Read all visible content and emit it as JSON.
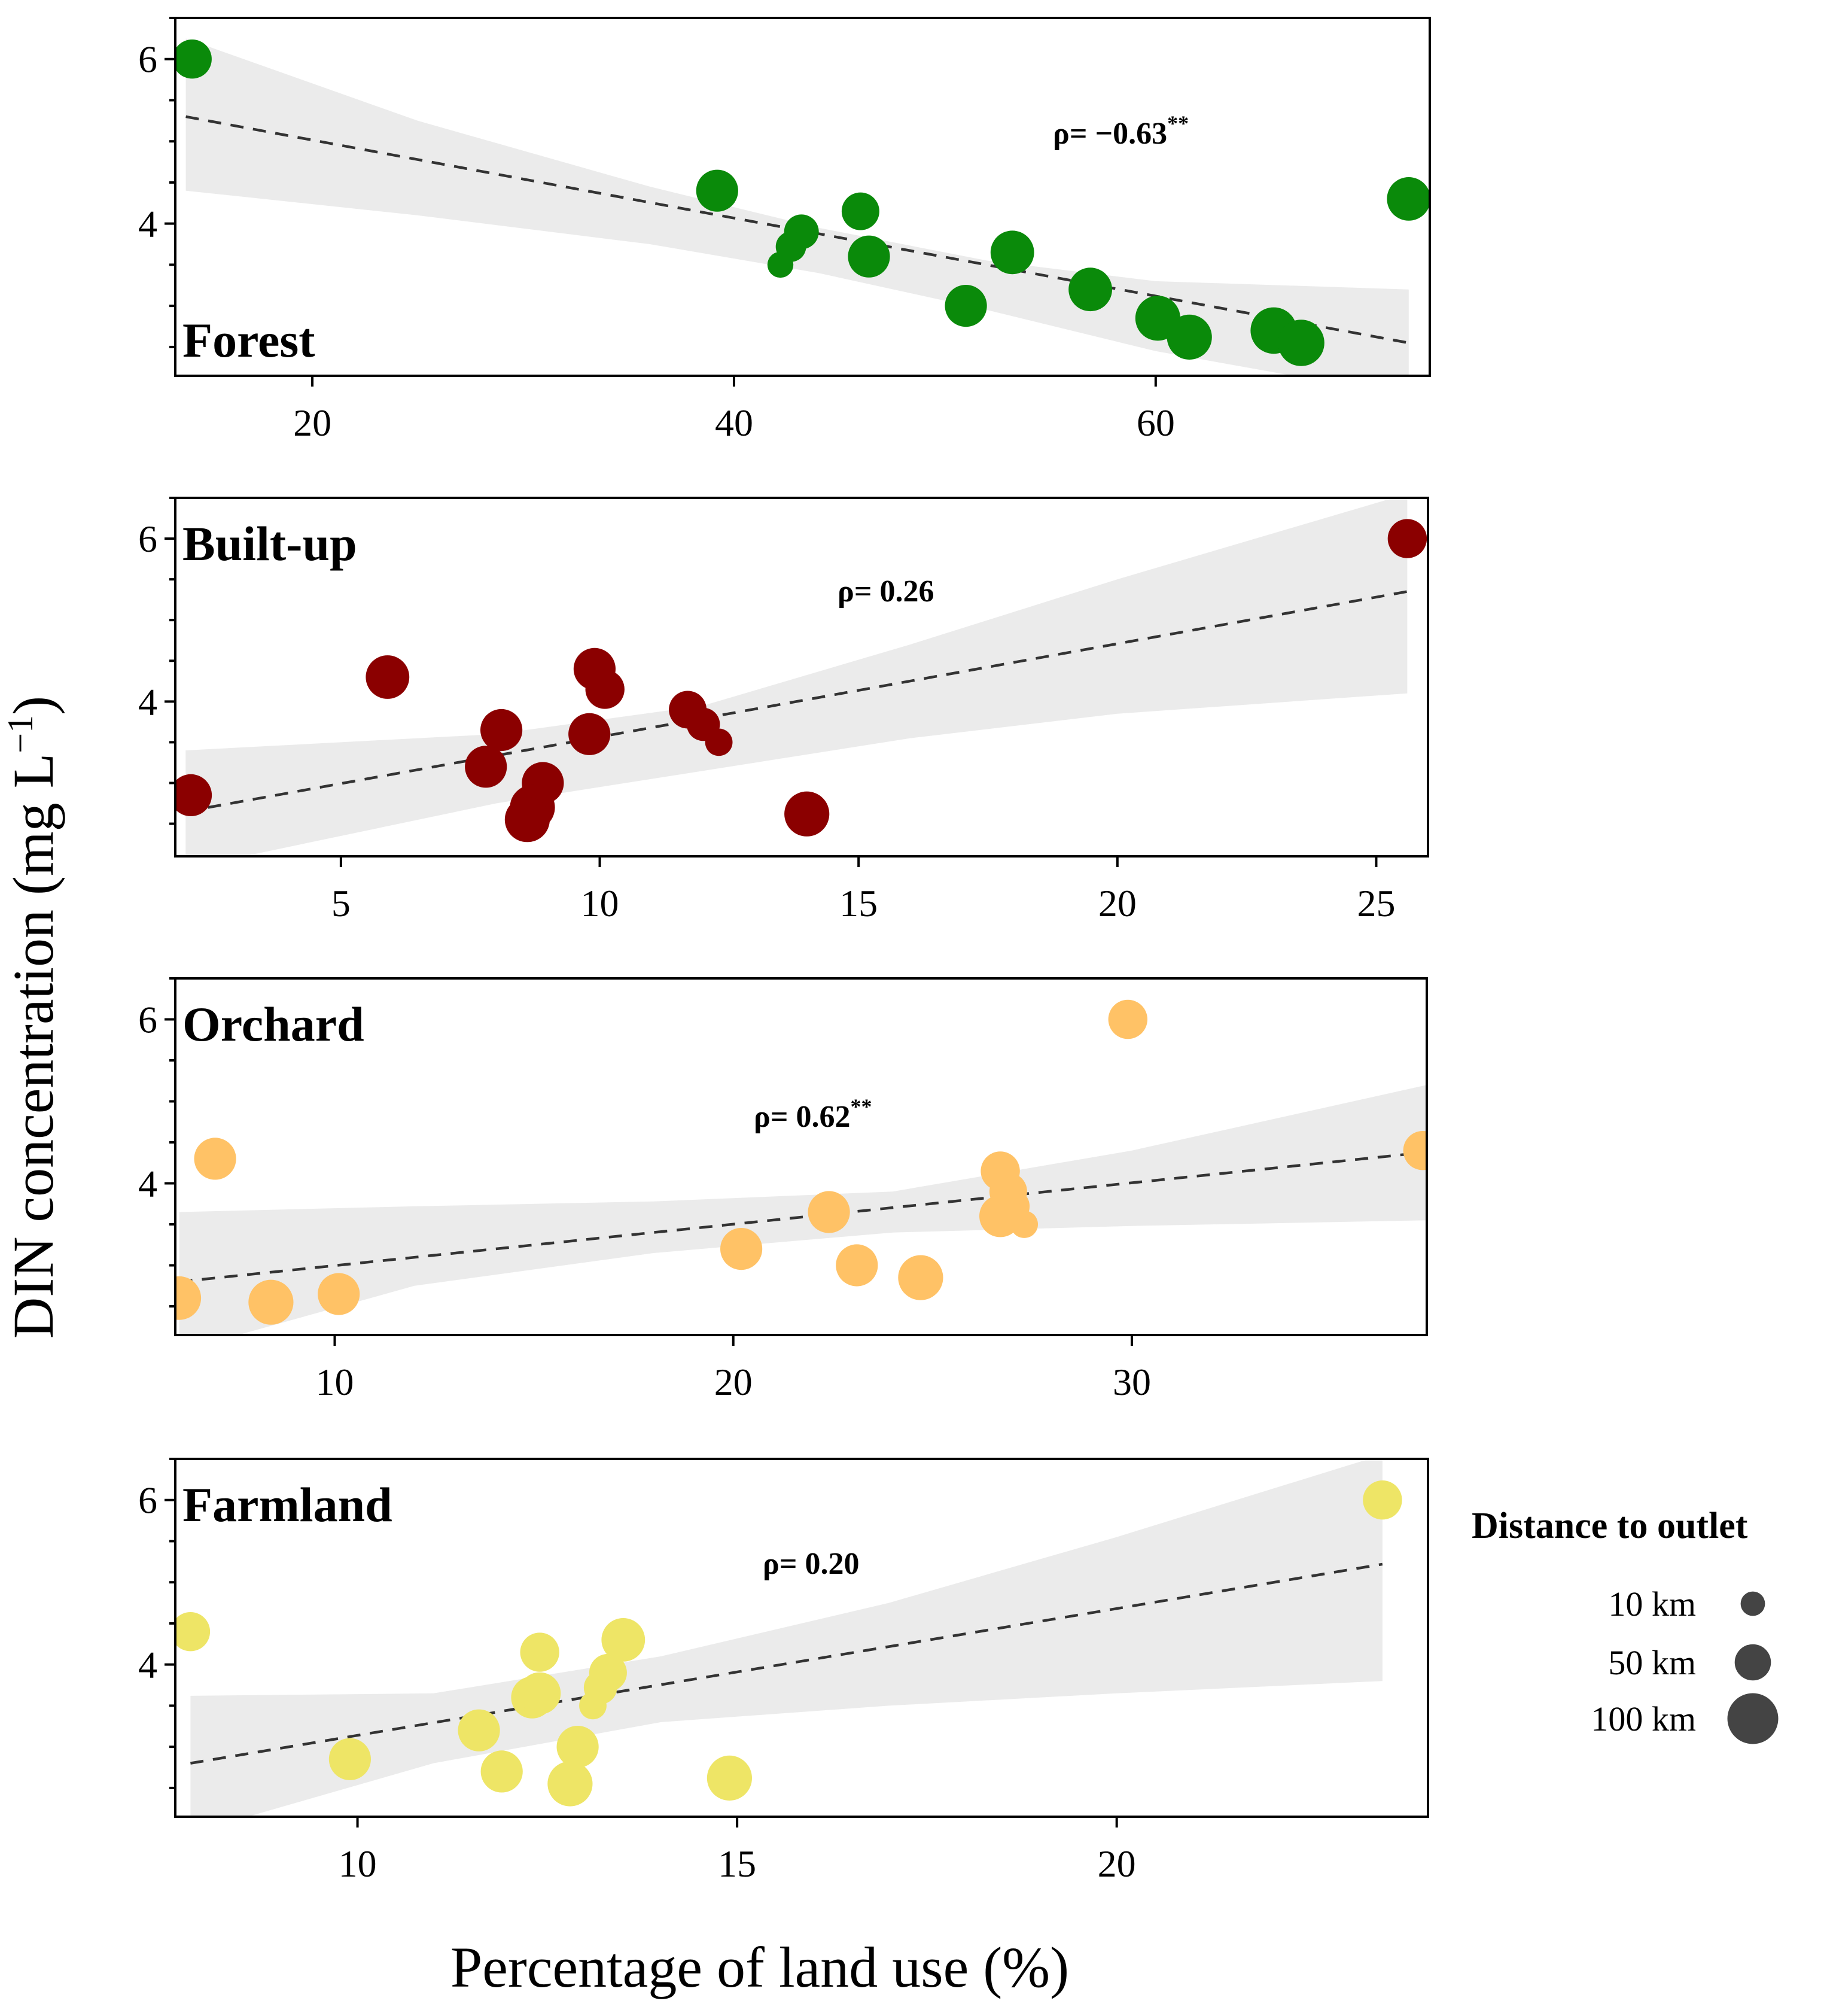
{
  "colors": {
    "forest": "#0a8a0a",
    "builtup": "#8b0000",
    "orchard": "#ffc266",
    "farmland": "#eee566",
    "band": "#ebebeb",
    "trend": "#333333",
    "legend_point": "#444444"
  },
  "chart_data": [
    {
      "type": "scatter",
      "label": "Forest",
      "rho_text": "ρ= −0.63",
      "rho_sig": "**",
      "xlim": [
        13.5,
        73
      ],
      "ylim": [
        2.15,
        6.5
      ],
      "xticks": [
        20,
        40,
        60
      ],
      "yticks": [
        4,
        6
      ],
      "trend": {
        "x": [
          14,
          72
        ],
        "y": [
          5.3,
          2.55
        ]
      },
      "band": {
        "x": [
          14,
          25,
          36,
          44,
          52,
          60,
          72
        ],
        "upper": [
          6.25,
          5.25,
          4.45,
          3.95,
          3.55,
          3.3,
          3.2
        ],
        "lower": [
          4.4,
          4.1,
          3.75,
          3.4,
          2.95,
          2.45,
          1.9
        ]
      },
      "points": [
        {
          "x": 14.3,
          "y": 6.0,
          "d": 60
        },
        {
          "x": 39.2,
          "y": 4.4,
          "d": 70
        },
        {
          "x": 46.0,
          "y": 4.15,
          "d": 55
        },
        {
          "x": 43.2,
          "y": 3.9,
          "d": 45
        },
        {
          "x": 42.7,
          "y": 3.72,
          "d": 30
        },
        {
          "x": 42.2,
          "y": 3.5,
          "d": 15
        },
        {
          "x": 46.4,
          "y": 3.6,
          "d": 70
        },
        {
          "x": 53.2,
          "y": 3.65,
          "d": 75
        },
        {
          "x": 51.0,
          "y": 3.0,
          "d": 70
        },
        {
          "x": 56.9,
          "y": 3.2,
          "d": 75
        },
        {
          "x": 60.1,
          "y": 2.85,
          "d": 80
        },
        {
          "x": 61.6,
          "y": 2.62,
          "d": 80
        },
        {
          "x": 65.6,
          "y": 2.7,
          "d": 85
        },
        {
          "x": 66.9,
          "y": 2.55,
          "d": 85
        },
        {
          "x": 72.0,
          "y": 4.3,
          "d": 75
        }
      ]
    },
    {
      "type": "scatter",
      "label": "Built-up",
      "rho_text": "ρ= 0.26",
      "rho_sig": "",
      "xlim": [
        1.8,
        26
      ],
      "ylim": [
        2.1,
        6.5
      ],
      "xticks": [
        5,
        10,
        15,
        20,
        25
      ],
      "yticks": [
        4,
        6
      ],
      "trend": {
        "x": [
          2,
          25.6
        ],
        "y": [
          2.65,
          5.35
        ]
      },
      "band": {
        "x": [
          2,
          8,
          12,
          16,
          20,
          25.6
        ],
        "upper": [
          3.4,
          3.6,
          3.95,
          4.7,
          5.5,
          6.55
        ],
        "lower": [
          1.95,
          2.75,
          3.15,
          3.55,
          3.85,
          4.1
        ]
      },
      "points": [
        {
          "x": 2.1,
          "y": 2.85,
          "d": 70
        },
        {
          "x": 5.9,
          "y": 4.3,
          "d": 75
        },
        {
          "x": 8.1,
          "y": 3.65,
          "d": 70
        },
        {
          "x": 7.8,
          "y": 3.2,
          "d": 70
        },
        {
          "x": 8.9,
          "y": 3.0,
          "d": 70
        },
        {
          "x": 8.7,
          "y": 2.7,
          "d": 80
        },
        {
          "x": 8.6,
          "y": 2.55,
          "d": 80
        },
        {
          "x": 9.9,
          "y": 4.4,
          "d": 70
        },
        {
          "x": 10.1,
          "y": 4.15,
          "d": 60
        },
        {
          "x": 9.8,
          "y": 3.6,
          "d": 70
        },
        {
          "x": 11.7,
          "y": 3.9,
          "d": 55
        },
        {
          "x": 12.0,
          "y": 3.72,
          "d": 40
        },
        {
          "x": 12.3,
          "y": 3.5,
          "d": 20
        },
        {
          "x": 14.0,
          "y": 2.62,
          "d": 80
        },
        {
          "x": 25.6,
          "y": 6.0,
          "d": 60
        }
      ]
    },
    {
      "type": "scatter",
      "label": "Orchard",
      "rho_text": "ρ= 0.62",
      "rho_sig": "**",
      "xlim": [
        6,
        37.4
      ],
      "ylim": [
        2.15,
        6.5
      ],
      "xticks": [
        10,
        20,
        30
      ],
      "yticks": [
        4,
        6
      ],
      "trend": {
        "x": [
          6.1,
          37.4
        ],
        "y": [
          2.8,
          4.38
        ]
      },
      "band": {
        "x": [
          6.1,
          12,
          18,
          24,
          30,
          37.4
        ],
        "upper": [
          3.65,
          3.72,
          3.78,
          3.9,
          4.4,
          5.2
        ],
        "lower": [
          1.95,
          2.75,
          3.15,
          3.4,
          3.48,
          3.55
        ]
      },
      "points": [
        {
          "x": 6.1,
          "y": 2.6,
          "d": 75
        },
        {
          "x": 7.0,
          "y": 4.3,
          "d": 70
        },
        {
          "x": 8.4,
          "y": 2.55,
          "d": 80
        },
        {
          "x": 10.1,
          "y": 2.65,
          "d": 70
        },
        {
          "x": 20.2,
          "y": 3.2,
          "d": 70
        },
        {
          "x": 22.4,
          "y": 3.65,
          "d": 70
        },
        {
          "x": 23.1,
          "y": 3.0,
          "d": 70
        },
        {
          "x": 24.7,
          "y": 2.85,
          "d": 80
        },
        {
          "x": 26.7,
          "y": 4.15,
          "d": 60
        },
        {
          "x": 26.9,
          "y": 3.9,
          "d": 55
        },
        {
          "x": 27.0,
          "y": 3.72,
          "d": 45
        },
        {
          "x": 26.7,
          "y": 3.6,
          "d": 70
        },
        {
          "x": 27.3,
          "y": 3.5,
          "d": 20
        },
        {
          "x": 29.9,
          "y": 6.0,
          "d": 60
        },
        {
          "x": 37.3,
          "y": 4.4,
          "d": 60
        }
      ]
    },
    {
      "type": "scatter",
      "label": "Farmland",
      "rho_text": "ρ= 0.20",
      "rho_sig": "",
      "xlim": [
        7.6,
        24.1
      ],
      "ylim": [
        2.15,
        6.5
      ],
      "xticks": [
        10,
        15,
        20
      ],
      "yticks": [
        4,
        6
      ],
      "trend": {
        "x": [
          7.8,
          23.5
        ],
        "y": [
          2.8,
          5.22
        ]
      },
      "band": {
        "x": [
          7.8,
          11,
          14,
          17,
          20,
          23.5
        ],
        "upper": [
          3.62,
          3.65,
          4.1,
          4.75,
          5.55,
          6.55
        ],
        "lower": [
          1.95,
          2.8,
          3.3,
          3.5,
          3.65,
          3.8
        ]
      },
      "points": [
        {
          "x": 7.8,
          "y": 4.4,
          "d": 60
        },
        {
          "x": 9.9,
          "y": 2.85,
          "d": 70
        },
        {
          "x": 11.6,
          "y": 3.2,
          "d": 70
        },
        {
          "x": 11.9,
          "y": 2.7,
          "d": 70
        },
        {
          "x": 12.3,
          "y": 3.6,
          "d": 70
        },
        {
          "x": 12.4,
          "y": 3.65,
          "d": 70
        },
        {
          "x": 12.4,
          "y": 4.15,
          "d": 60
        },
        {
          "x": 12.8,
          "y": 2.55,
          "d": 80
        },
        {
          "x": 12.9,
          "y": 3.0,
          "d": 70
        },
        {
          "x": 13.1,
          "y": 3.5,
          "d": 20
        },
        {
          "x": 13.2,
          "y": 3.72,
          "d": 40
        },
        {
          "x": 13.3,
          "y": 3.9,
          "d": 55
        },
        {
          "x": 13.5,
          "y": 4.3,
          "d": 75
        },
        {
          "x": 14.9,
          "y": 2.62,
          "d": 80
        },
        {
          "x": 23.5,
          "y": 6.0,
          "d": 60
        }
      ]
    }
  ],
  "axes": {
    "ylabel": "DIN concentration (mg L",
    "ylabel_exp": "−1",
    "ylabel_close": ")",
    "xlabel": "Percentage of land use (%)"
  },
  "legend": {
    "title": "Distance to outlet",
    "items": [
      {
        "label": "10 km",
        "d": 10
      },
      {
        "label": "50 km",
        "d": 50
      },
      {
        "label": "100 km",
        "d": 100
      }
    ]
  }
}
